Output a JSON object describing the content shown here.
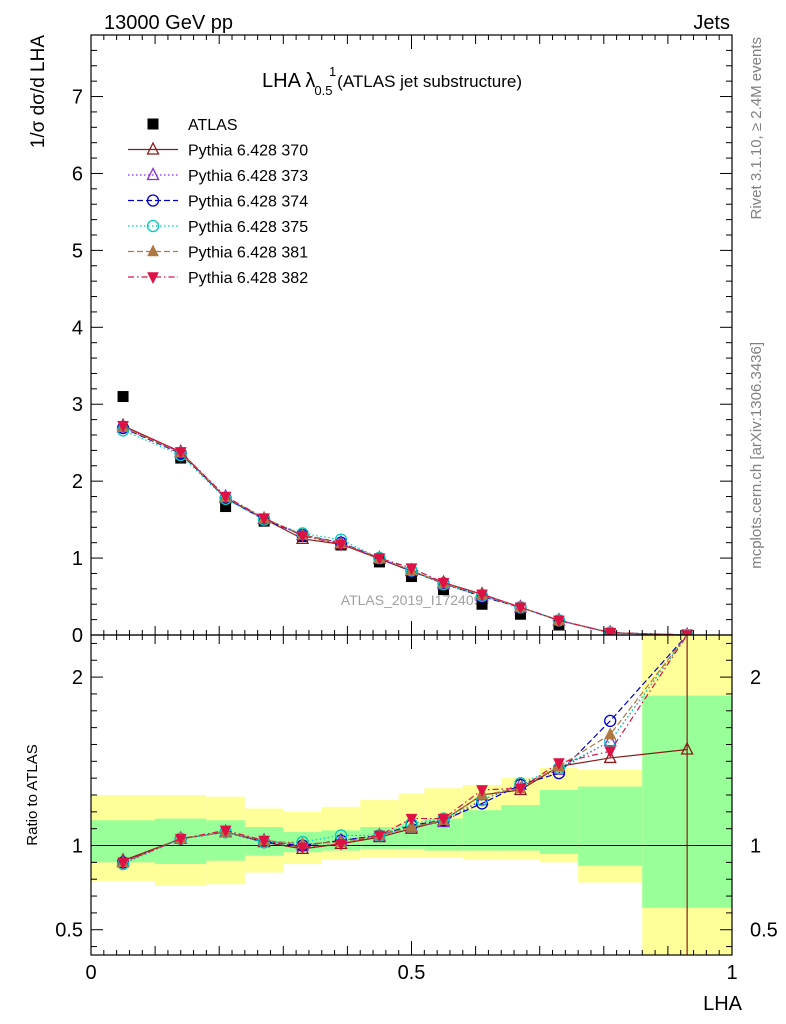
{
  "header": {
    "left": "13000 GeV pp",
    "right": "Jets"
  },
  "side_text": {
    "rivet": "Rivet 3.1.10, ≥ 2.4M events",
    "mcplots": "mcplots.cern.ch [arXiv:1306.3436]"
  },
  "chart_data": [
    {
      "type": "scatter",
      "panel": "main",
      "title_main": "LHA λ",
      "title_sup": "1",
      "title_sub": "0.5",
      "title_rest": " (ATLAS jet substructure)",
      "ylabel": "1/σ dσ/d LHA",
      "xlim": [
        0,
        1
      ],
      "ylim": [
        0,
        7.8
      ],
      "yticks": [
        0,
        1,
        2,
        3,
        4,
        5,
        6,
        7
      ],
      "ytick_labels": [
        "0",
        "1",
        "2",
        "3",
        "4",
        "5",
        "6",
        "7"
      ],
      "watermark": "ATLAS_2019_I1724098",
      "legend_position": "top-left",
      "x": [
        0.05,
        0.14,
        0.21,
        0.27,
        0.33,
        0.39,
        0.45,
        0.5,
        0.55,
        0.61,
        0.67,
        0.73,
        0.81,
        0.93
      ],
      "series": [
        {
          "name": "ATLAS",
          "color": "#000000",
          "marker": "square",
          "line": "none",
          "values": [
            3.1,
            2.3,
            1.67,
            1.48,
            1.28,
            1.17,
            0.95,
            0.76,
            0.59,
            0.4,
            0.27,
            0.13,
            0.02,
            0.0
          ]
        },
        {
          "name": "Pythia 6.428 370",
          "color": "#8b1a1a",
          "marker": "triangle-up-open",
          "line": "solid",
          "values": [
            2.72,
            2.38,
            1.78,
            1.51,
            1.25,
            1.18,
            0.99,
            0.83,
            0.68,
            0.53,
            0.36,
            0.19,
            0.03,
            0.0
          ]
        },
        {
          "name": "Pythia 6.428 373",
          "color": "#8a2be2",
          "marker": "triangle-up-open",
          "line": "dotted",
          "values": [
            2.7,
            2.37,
            1.8,
            1.51,
            1.3,
            1.2,
            1.0,
            0.84,
            0.66,
            0.51,
            0.36,
            0.19,
            0.03,
            0.0
          ]
        },
        {
          "name": "Pythia 6.428 374",
          "color": "#0000cc",
          "marker": "circle-open",
          "line": "dashed",
          "values": [
            2.69,
            2.36,
            1.78,
            1.5,
            1.3,
            1.2,
            1.0,
            0.83,
            0.67,
            0.5,
            0.36,
            0.19,
            0.03,
            0.0
          ]
        },
        {
          "name": "Pythia 6.428 375",
          "color": "#00ccbb",
          "marker": "circle-open",
          "line": "dotted",
          "values": [
            2.66,
            2.34,
            1.77,
            1.5,
            1.32,
            1.24,
            1.0,
            0.84,
            0.66,
            0.51,
            0.36,
            0.19,
            0.03,
            0.0
          ]
        },
        {
          "name": "Pythia 6.428 381",
          "color": "#b07840",
          "marker": "triangle-up",
          "line": "dashed",
          "values": [
            2.7,
            2.37,
            1.79,
            1.52,
            1.3,
            1.19,
            1.0,
            0.84,
            0.67,
            0.52,
            0.36,
            0.19,
            0.03,
            0.0
          ]
        },
        {
          "name": "Pythia 6.428 382",
          "color": "#dd1144",
          "marker": "triangle-down",
          "line": "dashdot",
          "values": [
            2.72,
            2.38,
            1.8,
            1.52,
            1.29,
            1.18,
            1.0,
            0.87,
            0.68,
            0.53,
            0.36,
            0.19,
            0.03,
            0.0
          ]
        }
      ]
    },
    {
      "type": "scatter",
      "panel": "ratio",
      "xlabel": "LHA",
      "ylabel": "Ratio to ATLAS",
      "xlim": [
        0,
        1
      ],
      "ylim": [
        0.35,
        2.25
      ],
      "xticks": [
        0,
        0.5,
        1
      ],
      "xtick_labels": [
        "0",
        "0.5",
        "1"
      ],
      "yticks": [
        0.5,
        1,
        2
      ],
      "ytick_labels": [
        "0.5",
        "1",
        "2"
      ],
      "bins": [
        {
          "lo": 0.0,
          "hi": 0.1,
          "green": [
            0.9,
            1.15
          ],
          "yellow": [
            0.79,
            1.3
          ]
        },
        {
          "lo": 0.1,
          "hi": 0.18,
          "green": [
            0.89,
            1.16
          ],
          "yellow": [
            0.76,
            1.3
          ]
        },
        {
          "lo": 0.18,
          "hi": 0.24,
          "green": [
            0.91,
            1.15
          ],
          "yellow": [
            0.77,
            1.29
          ]
        },
        {
          "lo": 0.24,
          "hi": 0.3,
          "green": [
            0.94,
            1.11
          ],
          "yellow": [
            0.84,
            1.22
          ]
        },
        {
          "lo": 0.3,
          "hi": 0.36,
          "green": [
            0.96,
            1.08
          ],
          "yellow": [
            0.89,
            1.2
          ]
        },
        {
          "lo": 0.36,
          "hi": 0.42,
          "green": [
            0.97,
            1.09
          ],
          "yellow": [
            0.92,
            1.23
          ]
        },
        {
          "lo": 0.42,
          "hi": 0.48,
          "green": [
            0.98,
            1.11
          ],
          "yellow": [
            0.93,
            1.27
          ]
        },
        {
          "lo": 0.48,
          "hi": 0.52,
          "green": [
            0.98,
            1.13
          ],
          "yellow": [
            0.93,
            1.31
          ]
        },
        {
          "lo": 0.52,
          "hi": 0.58,
          "green": [
            0.97,
            1.16
          ],
          "yellow": [
            0.93,
            1.34
          ]
        },
        {
          "lo": 0.58,
          "hi": 0.64,
          "green": [
            0.97,
            1.21
          ],
          "yellow": [
            0.92,
            1.36
          ]
        },
        {
          "lo": 0.64,
          "hi": 0.7,
          "green": [
            0.97,
            1.24
          ],
          "yellow": [
            0.92,
            1.4
          ]
        },
        {
          "lo": 0.7,
          "hi": 0.76,
          "green": [
            0.95,
            1.33
          ],
          "yellow": [
            0.9,
            1.46
          ]
        },
        {
          "lo": 0.76,
          "hi": 0.86,
          "green": [
            0.88,
            1.35
          ],
          "yellow": [
            0.78,
            1.45
          ]
        },
        {
          "lo": 0.86,
          "hi": 1.0,
          "green": [
            0.63,
            1.89
          ],
          "yellow": [
            0.35,
            2.25
          ]
        }
      ],
      "x": [
        0.05,
        0.14,
        0.21,
        0.27,
        0.33,
        0.39,
        0.45,
        0.5,
        0.55,
        0.61,
        0.67,
        0.73,
        0.81,
        0.93
      ],
      "series": [
        {
          "name": "Pythia 6.428 370",
          "color": "#8b1a1a",
          "marker": "triangle-up-open",
          "line": "solid",
          "values": [
            0.91,
            1.04,
            1.08,
            1.02,
            0.98,
            1.01,
            1.05,
            1.1,
            1.15,
            1.3,
            1.33,
            1.47,
            1.52,
            1.57
          ]
        },
        {
          "name": "Pythia 6.428 373",
          "color": "#8a2be2",
          "marker": "triangle-up-open",
          "line": "dotted",
          "values": [
            0.9,
            1.04,
            1.08,
            1.03,
            1.0,
            1.03,
            1.06,
            1.11,
            1.14,
            1.27,
            1.36,
            1.45,
            1.62,
            2.25
          ]
        },
        {
          "name": "Pythia 6.428 374",
          "color": "#0000cc",
          "marker": "circle-open",
          "line": "dashed",
          "values": [
            0.9,
            1.04,
            1.08,
            1.02,
            1.0,
            1.03,
            1.06,
            1.12,
            1.15,
            1.25,
            1.36,
            1.43,
            1.74,
            2.25
          ]
        },
        {
          "name": "Pythia 6.428 375",
          "color": "#00ccbb",
          "marker": "circle-open",
          "line": "dotted",
          "values": [
            0.89,
            1.04,
            1.08,
            1.02,
            1.02,
            1.06,
            1.06,
            1.13,
            1.16,
            1.27,
            1.37,
            1.46,
            1.62,
            2.25
          ]
        },
        {
          "name": "Pythia 6.428 381",
          "color": "#b07840",
          "marker": "triangle-up",
          "line": "dashed",
          "values": [
            0.9,
            1.04,
            1.08,
            1.03,
            1.01,
            1.02,
            1.06,
            1.11,
            1.15,
            1.3,
            1.34,
            1.47,
            1.66,
            2.25
          ]
        },
        {
          "name": "Pythia 6.428 382",
          "color": "#dd1144",
          "marker": "triangle-down",
          "line": "dashdot",
          "values": [
            0.9,
            1.04,
            1.09,
            1.03,
            0.99,
            1.01,
            1.06,
            1.16,
            1.16,
            1.33,
            1.34,
            1.49,
            1.56,
            2.25
          ]
        }
      ]
    }
  ]
}
